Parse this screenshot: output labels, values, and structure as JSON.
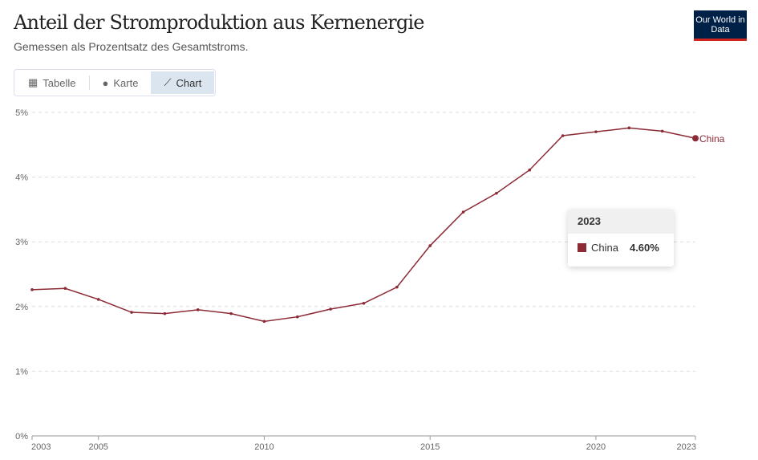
{
  "header": {
    "title": "Anteil der Stromproduktion aus Kernenergie",
    "subtitle": "Gemessen als Prozentsatz des Gesamtstroms.",
    "logo": "Our World in Data"
  },
  "tabs": [
    {
      "label": "Tabelle",
      "icon": "table-icon"
    },
    {
      "label": "Karte",
      "icon": "globe-icon"
    },
    {
      "label": "Chart",
      "icon": "line-chart-icon",
      "active": true
    }
  ],
  "tooltip": {
    "year": "2023",
    "entity": "China",
    "value": "4.60%"
  },
  "chart_data": {
    "type": "line",
    "title": "Anteil der Stromproduktion aus Kernenergie",
    "subtitle": "Gemessen als Prozentsatz des Gesamtstroms.",
    "xlim": [
      2003,
      2023
    ],
    "ylim": [
      0,
      5
    ],
    "x_ticks": [
      "2003",
      "2005",
      "2010",
      "2015",
      "2020",
      "2023"
    ],
    "y_ticks": [
      "0%",
      "1%",
      "2%",
      "3%",
      "4%",
      "5%"
    ],
    "grid": "horizontal dashed",
    "color": "#8c2a35",
    "series": [
      {
        "name": "China",
        "x": [
          2003,
          2004,
          2005,
          2006,
          2007,
          2008,
          2009,
          2010,
          2011,
          2012,
          2013,
          2014,
          2015,
          2016,
          2017,
          2018,
          2019,
          2020,
          2021,
          2022,
          2023
        ],
        "values": [
          2.26,
          2.28,
          2.11,
          1.91,
          1.89,
          1.95,
          1.89,
          1.77,
          1.84,
          1.96,
          2.05,
          2.3,
          2.94,
          3.46,
          3.75,
          4.11,
          4.64,
          4.7,
          4.76,
          4.71,
          4.6
        ]
      }
    ]
  }
}
